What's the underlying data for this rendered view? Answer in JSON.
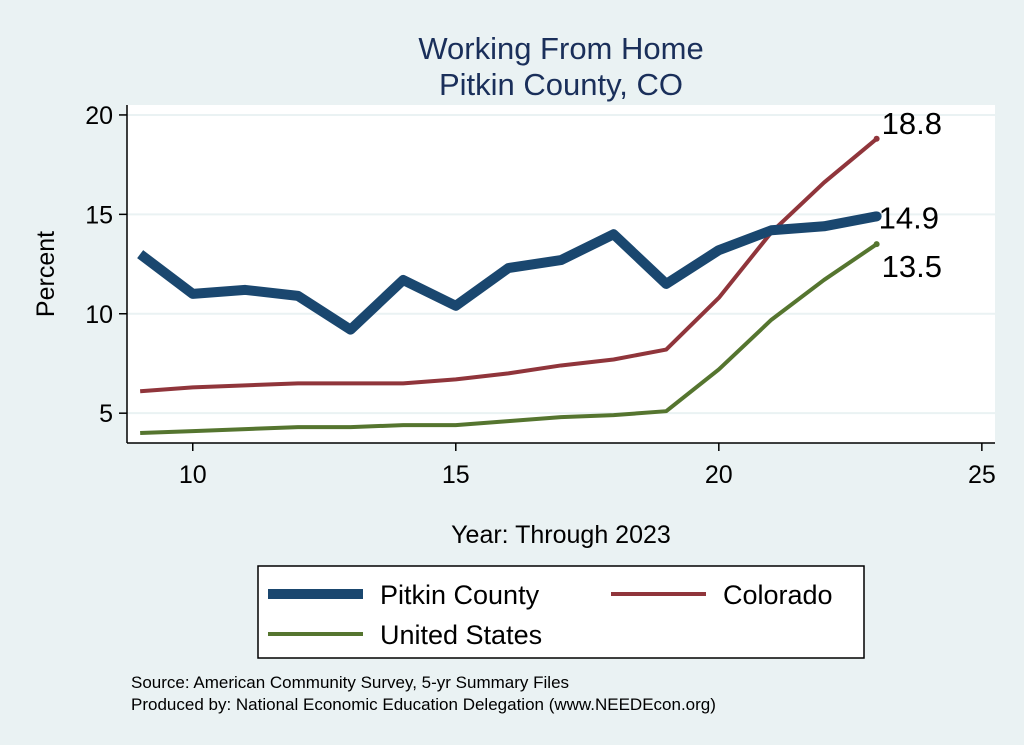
{
  "chart_data": {
    "type": "line",
    "title": "Working From Home",
    "subtitle": "Pitkin County, CO",
    "xlabel": "Year: Through 2023",
    "ylabel": "Percent",
    "xlim": [
      8.75,
      25.25
    ],
    "ylim": [
      3.5,
      20.5
    ],
    "xticks": [
      10,
      15,
      20,
      25
    ],
    "yticks": [
      5,
      10,
      15,
      20
    ],
    "x": [
      9,
      10,
      11,
      12,
      13,
      14,
      15,
      16,
      17,
      18,
      19,
      20,
      21,
      22,
      23
    ],
    "series": [
      {
        "name": "Pitkin County",
        "color": "#1a476f",
        "values": [
          13.0,
          11.0,
          11.2,
          10.9,
          9.2,
          11.7,
          10.4,
          12.3,
          12.7,
          14.0,
          11.5,
          13.2,
          14.2,
          14.4,
          14.9
        ],
        "end_label": "14.9"
      },
      {
        "name": "Colorado",
        "color": "#90353b",
        "values": [
          6.1,
          6.3,
          6.4,
          6.5,
          6.5,
          6.5,
          6.7,
          7.0,
          7.4,
          7.7,
          8.2,
          10.8,
          14.1,
          16.6,
          18.8
        ],
        "end_label": "18.8"
      },
      {
        "name": "United States",
        "color": "#55752f",
        "values": [
          4.0,
          4.1,
          4.2,
          4.3,
          4.3,
          4.4,
          4.4,
          4.6,
          4.8,
          4.9,
          5.1,
          7.2,
          9.7,
          11.7,
          13.5
        ],
        "end_label": "13.5"
      }
    ],
    "grid": true,
    "legend_position": "bottom"
  },
  "source_lines": [
    "Source: American Community Survey, 5-yr Summary Files",
    "Produced by: National Economic Education Delegation (www.NEEDEcon.org)"
  ]
}
